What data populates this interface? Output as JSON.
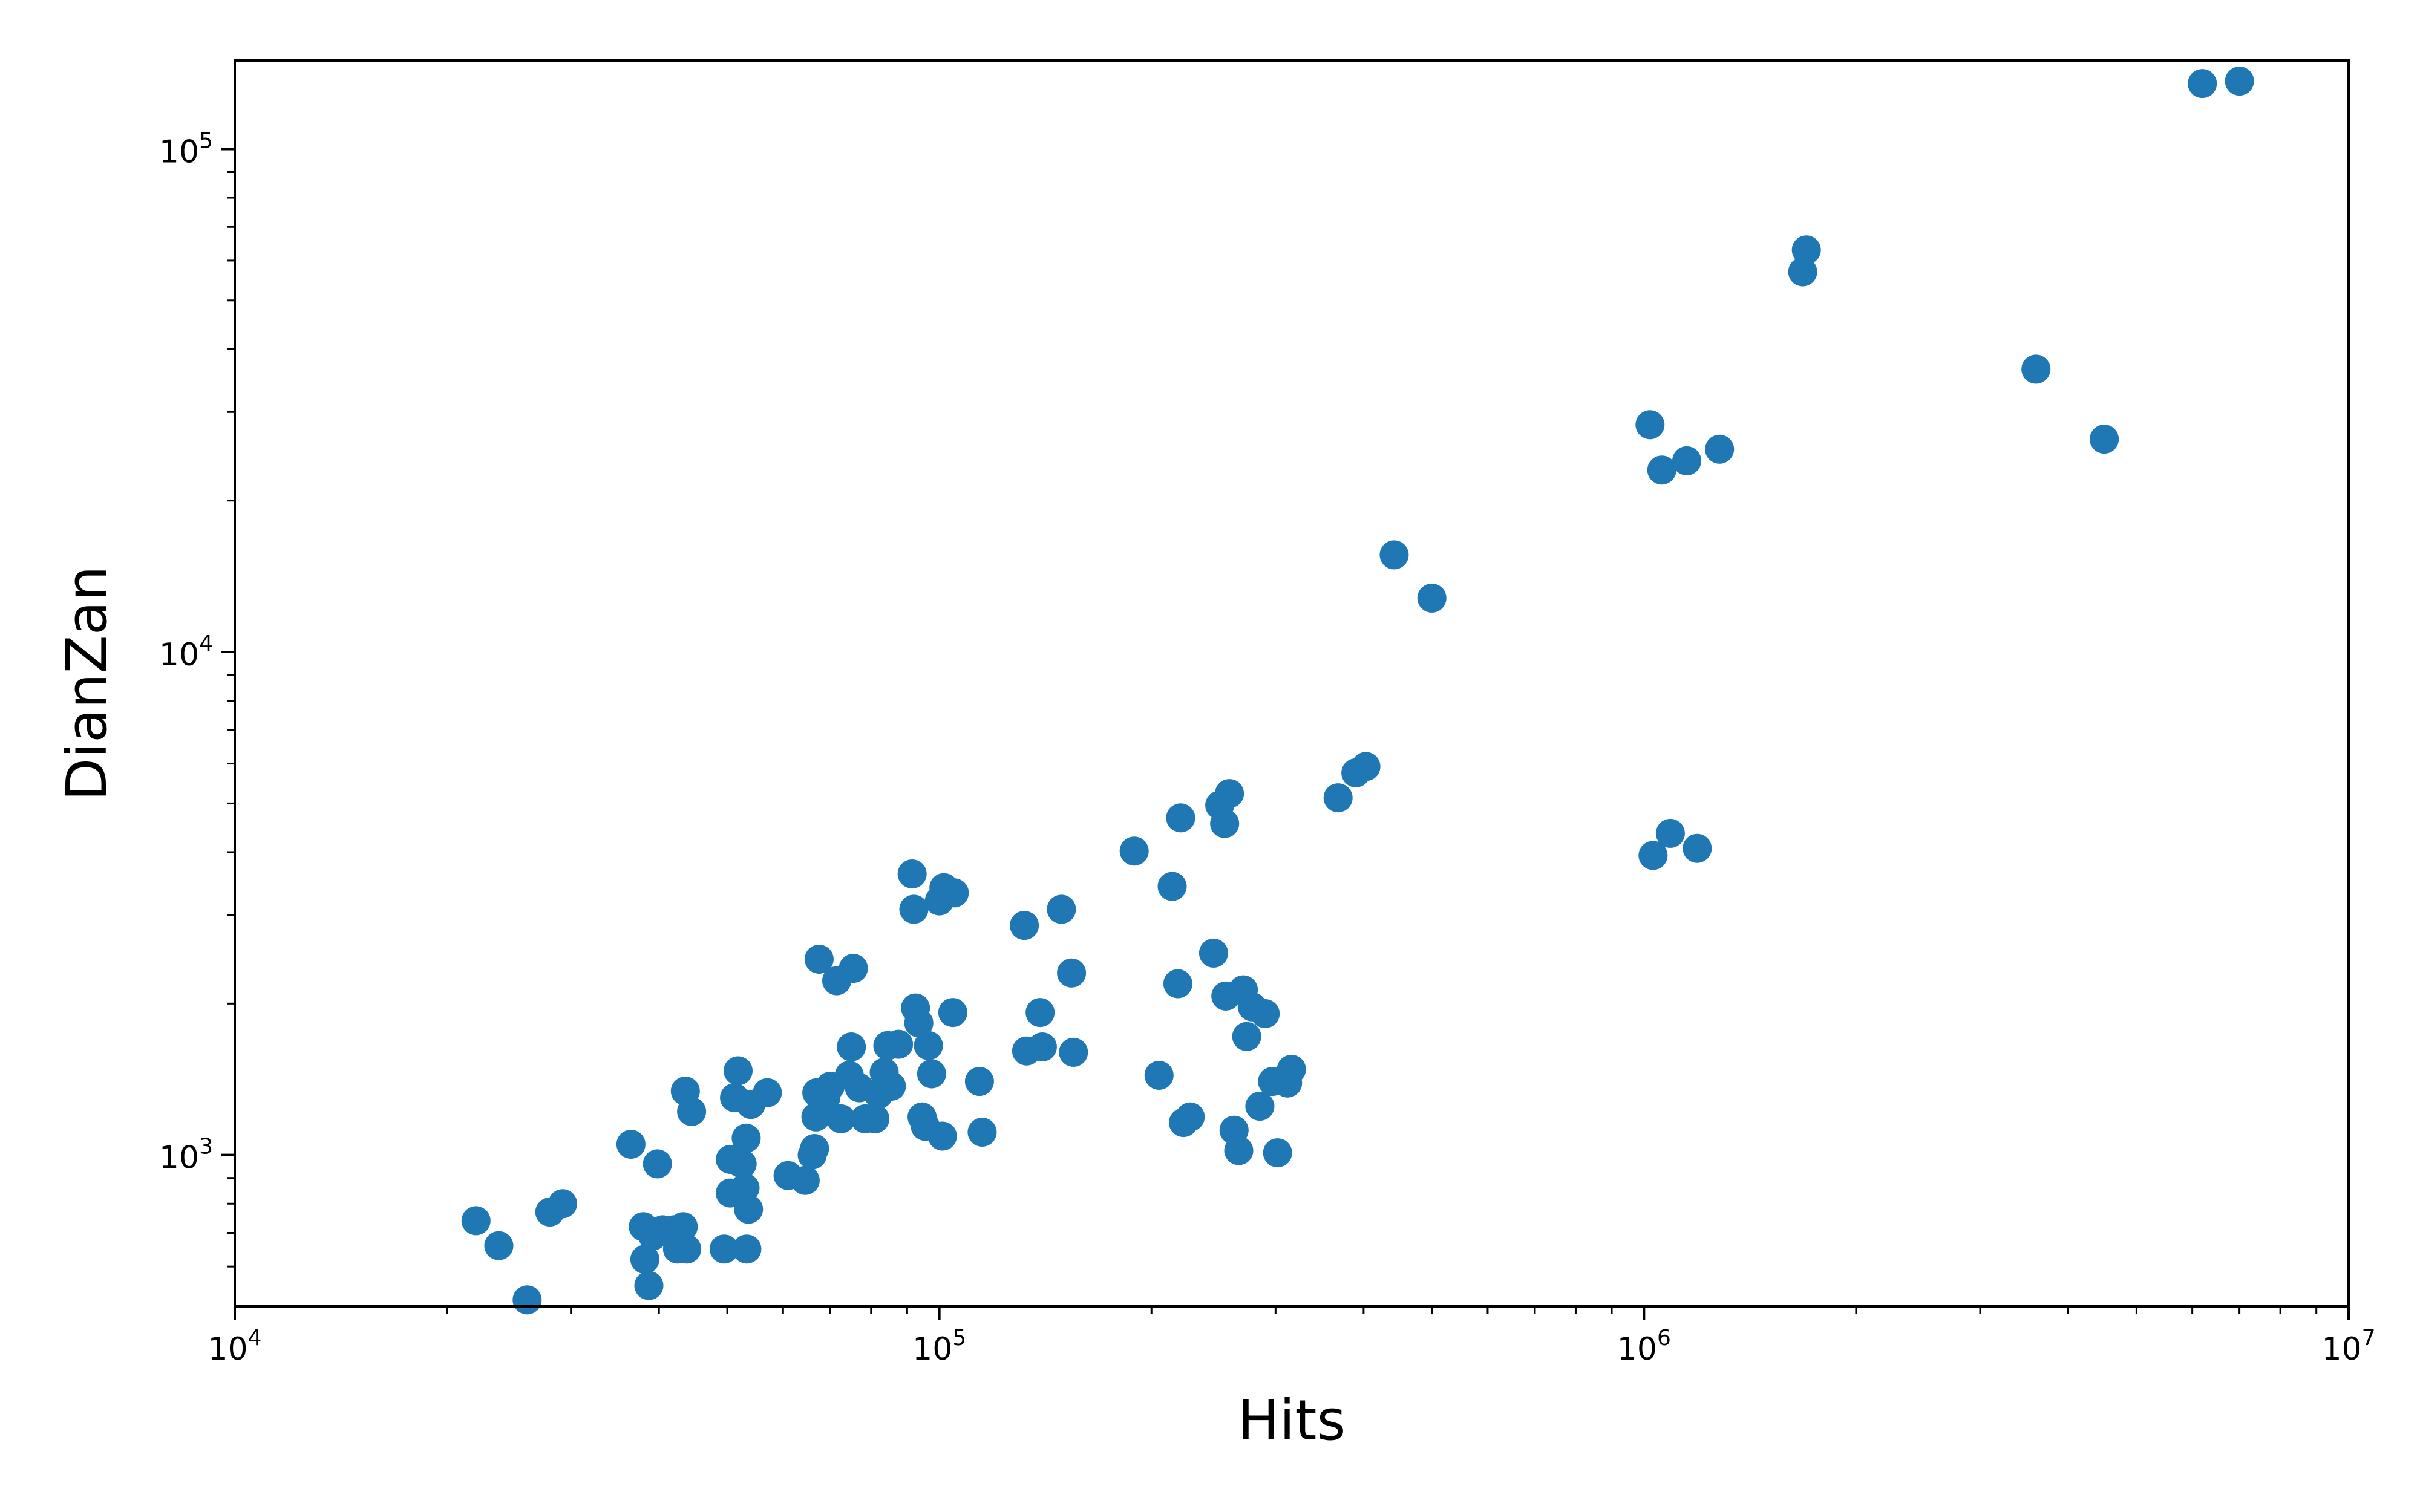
{
  "chart_data": {
    "type": "scatter",
    "xlabel": "Hits",
    "ylabel": "DianZan",
    "xscale": "log",
    "yscale": "log",
    "xlim": [
      10000,
      10000000
    ],
    "ylim": [
      500,
      150000
    ],
    "grid": false,
    "marker_color": "#1f77b4",
    "x_ticks": [
      {
        "value": 10000,
        "base": "10",
        "exp": "4"
      },
      {
        "value": 100000,
        "base": "10",
        "exp": "5"
      },
      {
        "value": 1000000,
        "base": "10",
        "exp": "6"
      },
      {
        "value": 10000000,
        "base": "10",
        "exp": "7"
      }
    ],
    "y_ticks": [
      {
        "value": 1000,
        "base": "10",
        "exp": "3"
      },
      {
        "value": 10000,
        "base": "10",
        "exp": "4"
      },
      {
        "value": 100000,
        "base": "10",
        "exp": "5"
      }
    ],
    "points": [
      [
        22000,
        740
      ],
      [
        23700,
        660
      ],
      [
        26000,
        515
      ],
      [
        28000,
        770
      ],
      [
        29200,
        800
      ],
      [
        36500,
        1050
      ],
      [
        38000,
        720
      ],
      [
        38200,
        620
      ],
      [
        38700,
        550
      ],
      [
        39200,
        690
      ],
      [
        39800,
        960
      ],
      [
        40500,
        710
      ],
      [
        42000,
        710
      ],
      [
        42500,
        650
      ],
      [
        43300,
        720
      ],
      [
        43600,
        1340
      ],
      [
        43800,
        650
      ],
      [
        44500,
        1220
      ],
      [
        49500,
        650
      ],
      [
        50500,
        980
      ],
      [
        50500,
        840
      ],
      [
        51200,
        1300
      ],
      [
        51800,
        1470
      ],
      [
        52500,
        960
      ],
      [
        53000,
        860
      ],
      [
        53200,
        1080
      ],
      [
        53300,
        650
      ],
      [
        53600,
        780
      ],
      [
        54000,
        1260
      ],
      [
        57000,
        1330
      ],
      [
        61000,
        910
      ],
      [
        64500,
        890
      ],
      [
        66000,
        1000
      ],
      [
        66500,
        1030
      ],
      [
        66800,
        1190
      ],
      [
        67000,
        1330
      ],
      [
        67500,
        2450
      ],
      [
        69000,
        1300
      ],
      [
        70000,
        1370
      ],
      [
        71500,
        2220
      ],
      [
        72500,
        1180
      ],
      [
        74500,
        1440
      ],
      [
        75000,
        1640
      ],
      [
        75500,
        2350
      ],
      [
        77000,
        1360
      ],
      [
        78500,
        1180
      ],
      [
        81000,
        1180
      ],
      [
        82000,
        1320
      ],
      [
        83500,
        1460
      ],
      [
        84500,
        1650
      ],
      [
        85500,
        1370
      ],
      [
        87500,
        1660
      ],
      [
        91500,
        3620
      ],
      [
        92000,
        3080
      ],
      [
        92500,
        1960
      ],
      [
        93500,
        1830
      ],
      [
        94500,
        1190
      ],
      [
        95500,
        1140
      ],
      [
        96500,
        1650
      ],
      [
        97500,
        1450
      ],
      [
        100000,
        3200
      ],
      [
        101000,
        1090
      ],
      [
        101500,
        3400
      ],
      [
        104500,
        1920
      ],
      [
        105000,
        3320
      ],
      [
        114000,
        1400
      ],
      [
        115000,
        1110
      ],
      [
        132000,
        2860
      ],
      [
        133000,
        1610
      ],
      [
        139000,
        1920
      ],
      [
        140000,
        1640
      ],
      [
        149000,
        3080
      ],
      [
        154000,
        2300
      ],
      [
        155000,
        1600
      ],
      [
        189000,
        4020
      ],
      [
        205000,
        1440
      ],
      [
        214000,
        3420
      ],
      [
        218000,
        2190
      ],
      [
        220000,
        4680
      ],
      [
        222000,
        1160
      ],
      [
        227000,
        1190
      ],
      [
        245000,
        2520
      ],
      [
        250000,
        4960
      ],
      [
        254000,
        4560
      ],
      [
        255000,
        2070
      ],
      [
        258000,
        5230
      ],
      [
        262000,
        1120
      ],
      [
        266000,
        1020
      ],
      [
        270000,
        2130
      ],
      [
        273000,
        1720
      ],
      [
        278000,
        1970
      ],
      [
        285000,
        1250
      ],
      [
        290000,
        1910
      ],
      [
        297000,
        1400
      ],
      [
        302000,
        1010
      ],
      [
        312000,
        1390
      ],
      [
        316000,
        1480
      ],
      [
        368000,
        5130
      ],
      [
        390000,
        5750
      ],
      [
        403000,
        5920
      ],
      [
        442000,
        15600
      ],
      [
        500000,
        12800
      ],
      [
        1020000,
        28300
      ],
      [
        1030000,
        3940
      ],
      [
        1060000,
        23000
      ],
      [
        1090000,
        4360
      ],
      [
        1150000,
        24000
      ],
      [
        1190000,
        4070
      ],
      [
        1280000,
        25300
      ],
      [
        1680000,
        57000
      ],
      [
        1700000,
        63000
      ],
      [
        3600000,
        36500
      ],
      [
        4500000,
        26500
      ],
      [
        6200000,
        135000
      ],
      [
        7000000,
        136500
      ]
    ]
  }
}
